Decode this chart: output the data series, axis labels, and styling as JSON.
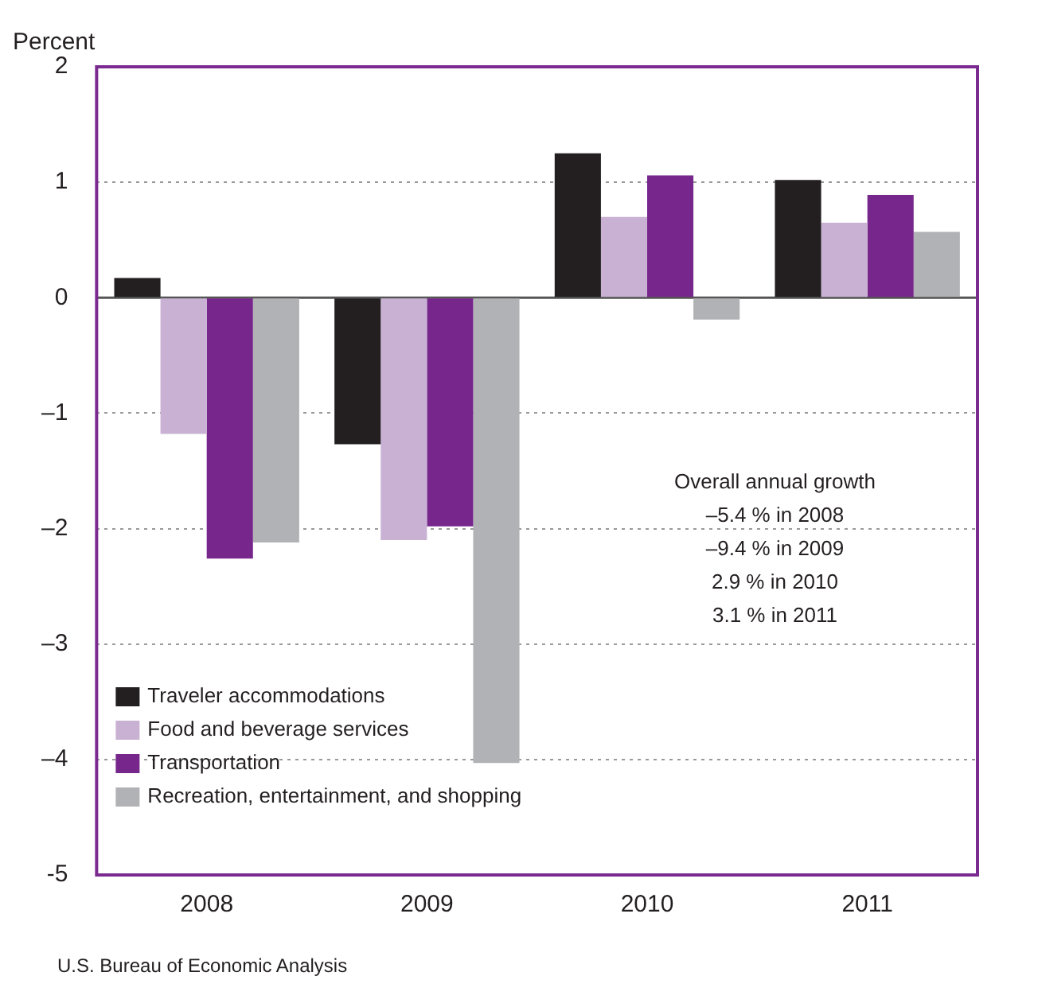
{
  "chart_data": {
    "type": "bar",
    "ylabel": "Percent",
    "categories": [
      "2008",
      "2009",
      "2010",
      "2011"
    ],
    "series": [
      {
        "name": "Traveler accommodations",
        "color": "#231f20",
        "values": [
          0.17,
          -1.27,
          1.25,
          1.02
        ]
      },
      {
        "name": "Food and beverage services",
        "color": "#c9b1d4",
        "values": [
          -1.18,
          -2.1,
          0.7,
          0.65
        ]
      },
      {
        "name": "Transportation",
        "color": "#77268c",
        "values": [
          -2.26,
          -1.98,
          1.06,
          0.89
        ]
      },
      {
        "name": "Recreation, entertainment, and shopping",
        "color": "#b1b2b5",
        "values": [
          -2.12,
          -4.03,
          -0.19,
          0.57
        ]
      }
    ],
    "ylim": [
      -5,
      2
    ],
    "yticks": [
      -5,
      {
        "value": -4,
        "label": "–4"
      },
      {
        "value": -3,
        "label": "–3"
      },
      {
        "value": -2,
        "label": "–2"
      },
      {
        "value": -1,
        "label": "–1"
      },
      0,
      1,
      2
    ],
    "grid": "y",
    "legend": "bottom left",
    "annotations": [
      "Overall annual growth",
      "–5.4 % in 2008",
      "–9.4 % in 2009",
      "2.9 % in 2010",
      "3.1 % in 2011",
      "U.S. Bureau of Economic Analysis"
    ]
  }
}
